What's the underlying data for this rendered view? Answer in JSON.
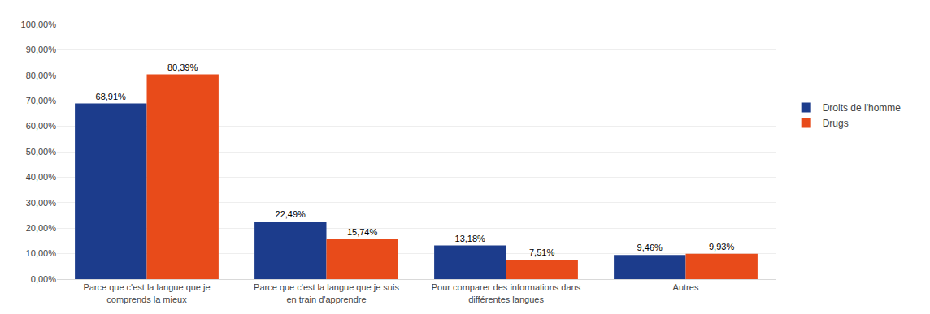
{
  "chart_data": {
    "type": "bar",
    "categories": [
      "Parce que c'est la langue que je\ncomprends la mieux",
      "Parce que c'est la langue que je suis\nen train d'apprendre",
      "Pour comparer des informations dans\ndifférentes langues",
      "Autres"
    ],
    "series": [
      {
        "name": "Droits de l'homme",
        "color": "#1C3C8C",
        "values": [
          68.91,
          22.49,
          13.18,
          9.46
        ],
        "value_labels": [
          "68,91%",
          "22,49%",
          "13,18%",
          "9,46%"
        ]
      },
      {
        "name": "Drugs",
        "color": "#E84B1A",
        "values": [
          80.39,
          15.74,
          7.51,
          9.93
        ],
        "value_labels": [
          "80,39%",
          "15,74%",
          "7,51%",
          "9,93%"
        ]
      }
    ],
    "ylim": [
      0,
      100
    ],
    "yticks": [
      {
        "value": 0,
        "label": "0,00%"
      },
      {
        "value": 10,
        "label": "10,00%"
      },
      {
        "value": 20,
        "label": "20,00%"
      },
      {
        "value": 30,
        "label": "30,00%"
      },
      {
        "value": 40,
        "label": "40,00%"
      },
      {
        "value": 50,
        "label": "50,00%"
      },
      {
        "value": 60,
        "label": "60,00%"
      },
      {
        "value": 70,
        "label": "70,00%"
      },
      {
        "value": 80,
        "label": "80,00%"
      },
      {
        "value": 90,
        "label": "90,00%"
      },
      {
        "value": 100,
        "label": "100,00%"
      }
    ],
    "grid": true,
    "legend": "right",
    "data_labels": true
  }
}
